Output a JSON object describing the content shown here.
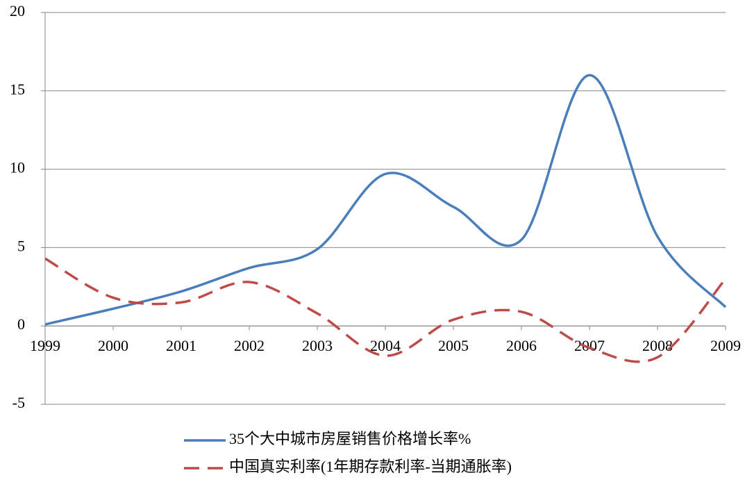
{
  "chart_data": {
    "type": "line",
    "categories": [
      "1999",
      "2000",
      "2001",
      "2002",
      "2003",
      "2004",
      "2005",
      "2006",
      "2007",
      "2008",
      "2009"
    ],
    "series": [
      {
        "name": "35个大中城市房屋销售价格增长率%",
        "color": "#4a7ebb",
        "dash": false,
        "values": [
          0.1,
          1.1,
          2.2,
          3.7,
          4.9,
          9.7,
          7.6,
          5.5,
          16.0,
          5.7,
          1.2
        ]
      },
      {
        "name": "中国真实利率(1年期存款利率-当期通胀率)",
        "color": "#be4b48",
        "dash": true,
        "values": [
          4.3,
          1.8,
          1.5,
          2.8,
          0.8,
          -1.9,
          0.4,
          0.9,
          -1.4,
          -2.0,
          3.0
        ]
      }
    ],
    "ylim": [
      -5,
      20
    ],
    "yticks": [
      -5,
      0,
      5,
      10,
      15,
      20
    ],
    "grid": true,
    "legend": "bottom",
    "smooth": true
  }
}
